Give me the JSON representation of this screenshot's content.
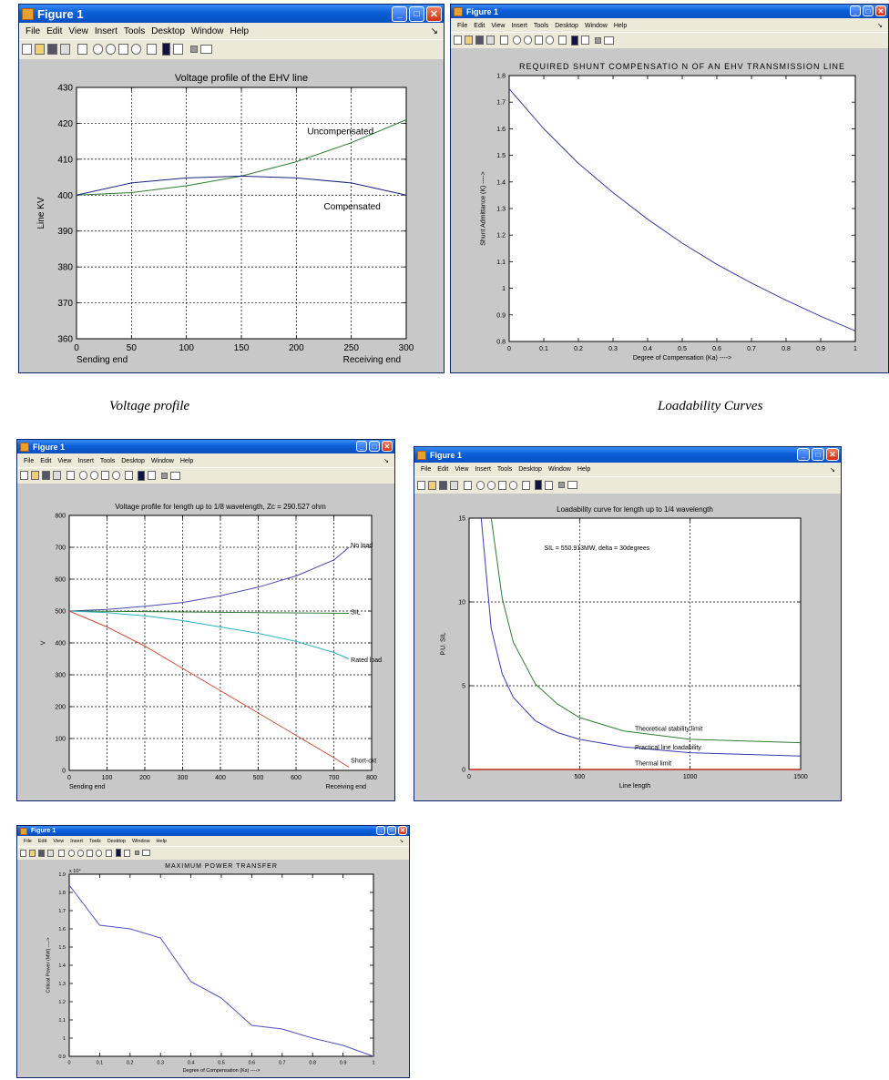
{
  "window_title": "Figure 1",
  "menu": [
    "File",
    "Edit",
    "View",
    "Insert",
    "Tools",
    "Desktop",
    "Window",
    "Help"
  ],
  "menu_arrow": "↘",
  "captions": {
    "voltage": "Voltage profile",
    "loadability": "Loadability Curves"
  },
  "chart_data": [
    {
      "id": "c1",
      "type": "line",
      "title": "Voltage profile of the EHV line",
      "xlabel": "",
      "ylabel": "Line KV",
      "xlim": [
        0,
        300
      ],
      "ylim": [
        360,
        430
      ],
      "xticks": [
        0,
        50,
        100,
        150,
        200,
        250,
        300
      ],
      "yticks": [
        360,
        370,
        380,
        390,
        400,
        410,
        420,
        430
      ],
      "grid": true,
      "under_labels": {
        "left": "Sending end",
        "right": "Receiving end"
      },
      "series": [
        {
          "name": "Uncompensated",
          "color": "#2e7d32",
          "x": [
            0,
            50,
            100,
            150,
            200,
            250,
            300
          ],
          "y": [
            400,
            400.7,
            402.6,
            405.3,
            409.3,
            414.6,
            421
          ]
        },
        {
          "name": "Compensated",
          "color": "#1a237e",
          "x": [
            0,
            50,
            100,
            150,
            200,
            250,
            300
          ],
          "y": [
            400,
            403.4,
            404.8,
            405.3,
            404.8,
            403.4,
            400
          ]
        }
      ],
      "annotations": [
        {
          "text": "Uncompensated",
          "x": 210,
          "y": 417
        },
        {
          "text": "Compensated",
          "x": 225,
          "y": 396
        }
      ]
    },
    {
      "id": "c2",
      "type": "line",
      "title": "REQUIRED SHUNT COMPENSATIO N OF AN EHV TRANSMISSION LINE",
      "xlabel": "Degree of Compensation (Ka)  ---->",
      "ylabel": "Shunt Admittance (K)  ---->",
      "xlim": [
        0,
        1
      ],
      "ylim": [
        0.8,
        1.8
      ],
      "xticks": [
        0,
        0.1,
        0.2,
        0.3,
        0.4,
        0.5,
        0.6,
        0.7,
        0.8,
        0.9,
        1
      ],
      "yticks": [
        0.8,
        0.9,
        1,
        1.1,
        1.2,
        1.3,
        1.4,
        1.5,
        1.6,
        1.7,
        1.8
      ],
      "grid": false,
      "series": [
        {
          "name": "",
          "color": "#3a3aa0",
          "x": [
            0,
            0.1,
            0.2,
            0.3,
            0.4,
            0.5,
            0.6,
            0.7,
            0.8,
            0.9,
            1
          ],
          "y": [
            1.75,
            1.6,
            1.47,
            1.36,
            1.26,
            1.17,
            1.09,
            1.02,
            0.955,
            0.895,
            0.84
          ]
        }
      ]
    },
    {
      "id": "c3",
      "type": "line",
      "title": "Voltage profile for length up to 1/8 wavelength, Zc = 290.527 ohm",
      "xlabel": "",
      "ylabel": "V",
      "xlim": [
        0,
        800
      ],
      "ylim": [
        0,
        800
      ],
      "xticks": [
        0,
        100,
        200,
        300,
        400,
        500,
        600,
        700,
        800
      ],
      "yticks": [
        0,
        100,
        200,
        300,
        400,
        500,
        600,
        700,
        800
      ],
      "grid": true,
      "under_labels": {
        "left": "Sending end",
        "right": "Receiving end"
      },
      "series": [
        {
          "name": "No load",
          "color": "#4a4ab0",
          "x": [
            0,
            100,
            200,
            300,
            400,
            500,
            600,
            700,
            740
          ],
          "y": [
            500,
            505,
            515,
            527,
            548,
            575,
            610,
            660,
            700
          ]
        },
        {
          "name": "SIL",
          "color": "#2e7d32",
          "x": [
            0,
            740
          ],
          "y": [
            500,
            493
          ]
        },
        {
          "name": "Rated load",
          "color": "#2bb0c0",
          "x": [
            0,
            100,
            200,
            300,
            400,
            500,
            600,
            700,
            740
          ],
          "y": [
            500,
            495,
            485,
            470,
            450,
            430,
            405,
            370,
            350
          ]
        },
        {
          "name": "Short-ckt",
          "color": "#d04a3a",
          "x": [
            0,
            100,
            200,
            300,
            400,
            500,
            600,
            700,
            740
          ],
          "y": [
            500,
            450,
            390,
            320,
            250,
            180,
            110,
            40,
            10
          ]
        }
      ],
      "annotations": [
        {
          "text": "No load",
          "x": 745,
          "y": 700
        },
        {
          "text": "SIL",
          "x": 745,
          "y": 490
        },
        {
          "text": "Rated load",
          "x": 745,
          "y": 340
        },
        {
          "text": "Short-ckt",
          "x": 745,
          "y": 25
        }
      ]
    },
    {
      "id": "c4",
      "type": "line",
      "title": "Loadability curve for length up to 1/4 wavelength",
      "xlabel": "Line length",
      "ylabel": "P.U. SIL",
      "xlim": [
        0,
        1500
      ],
      "ylim": [
        0,
        15
      ],
      "xticks": [
        0,
        500,
        1000,
        1500
      ],
      "yticks": [
        0,
        5,
        10,
        15
      ],
      "grid": true,
      "series": [
        {
          "name": "Theoretical stability limit",
          "color": "#2e7d32",
          "x": [
            100,
            150,
            200,
            300,
            400,
            500,
            700,
            1000,
            1500
          ],
          "y": [
            15,
            10.2,
            7.6,
            5.1,
            3.9,
            3.1,
            2.3,
            1.8,
            1.6
          ]
        },
        {
          "name": "Practical line loadability",
          "color": "#3a3ab0",
          "x": [
            55,
            100,
            150,
            200,
            300,
            400,
            500,
            700,
            1000,
            1500
          ],
          "y": [
            15,
            8.4,
            5.7,
            4.3,
            2.9,
            2.2,
            1.8,
            1.35,
            1.0,
            0.8
          ]
        },
        {
          "name": "Thermal limit",
          "color": "#c02a20",
          "x": [
            0,
            1500
          ],
          "y": [
            0,
            0
          ]
        }
      ],
      "annotations": [
        {
          "text": "SIL = 550.913MW,  delta = 30degrees",
          "x": 340,
          "y": 13.1
        },
        {
          "text": "Theoretical stability limit",
          "x": 750,
          "y": 2.3
        },
        {
          "text": "Practical line loadability",
          "x": 750,
          "y": 1.2
        },
        {
          "text": "Thermal limit",
          "x": 750,
          "y": 0.25
        }
      ]
    },
    {
      "id": "c5",
      "type": "line",
      "title": "MAXIMUM  POWER  TRANSFER",
      "xlabel": "Degree of Compensation (Ks)  ---->",
      "ylabel": "Critical Power (MW)  ---->",
      "y_multiplier": "x 10⁴",
      "xlim": [
        0,
        1
      ],
      "ylim": [
        0.9,
        1.9
      ],
      "xticks": [
        0,
        0.1,
        0.2,
        0.3,
        0.4,
        0.5,
        0.6,
        0.7,
        0.8,
        0.9,
        1
      ],
      "yticks": [
        0.9,
        1,
        1.1,
        1.2,
        1.3,
        1.4,
        1.5,
        1.6,
        1.7,
        1.8,
        1.9
      ],
      "grid": false,
      "series": [
        {
          "name": "",
          "color": "#5050c0",
          "x": [
            0,
            0.1,
            0.2,
            0.3,
            0.4,
            0.5,
            0.6,
            0.7,
            0.8,
            0.9,
            1
          ],
          "y": [
            1.84,
            1.62,
            1.6,
            1.55,
            1.31,
            1.22,
            1.07,
            1.05,
            1.0,
            0.96,
            0.9
          ]
        }
      ]
    }
  ]
}
